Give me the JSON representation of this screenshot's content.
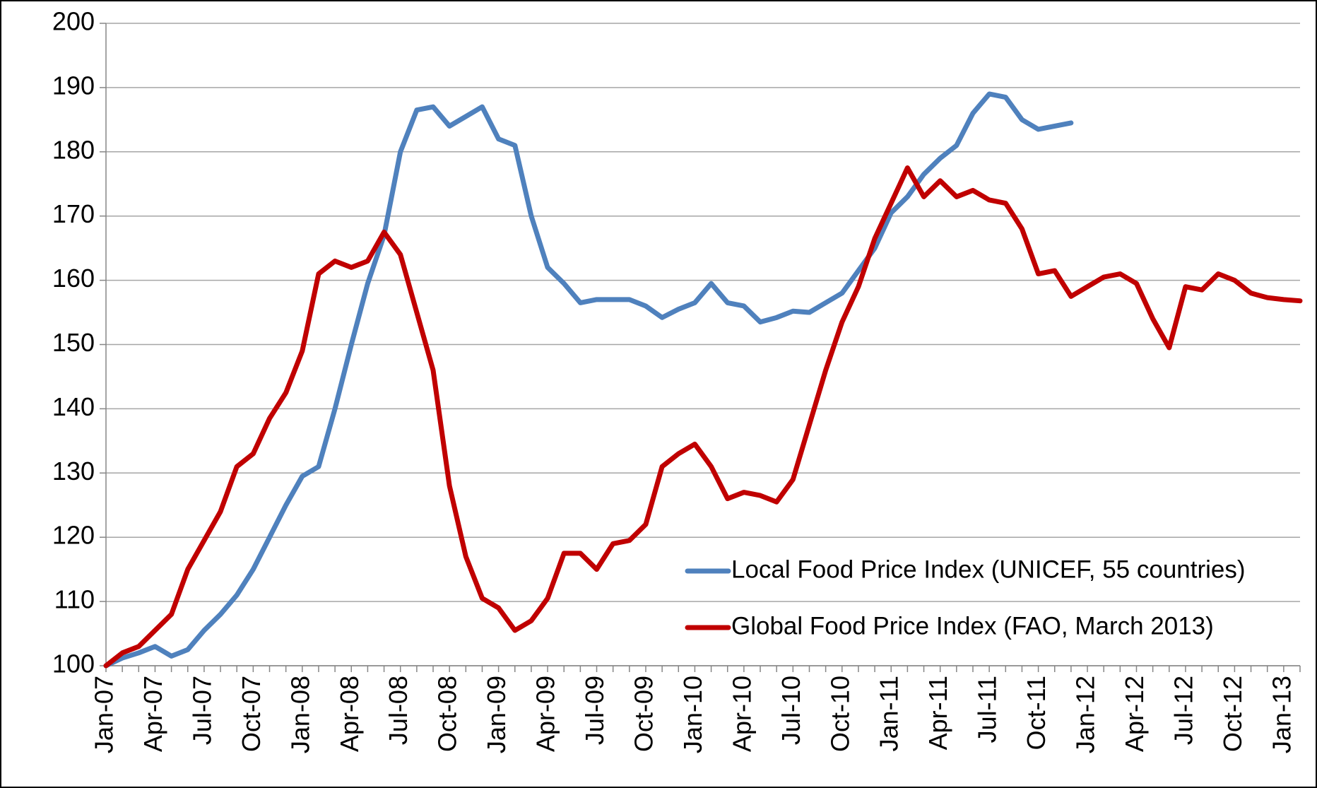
{
  "chart_data": {
    "type": "line",
    "categories": [
      "Jan-07",
      null,
      null,
      "Apr-07",
      null,
      null,
      "Jul-07",
      null,
      null,
      "Oct-07",
      null,
      null,
      "Jan-08",
      null,
      null,
      "Apr-08",
      null,
      null,
      "Jul-08",
      null,
      null,
      "Oct-08",
      null,
      null,
      "Jan-09",
      null,
      null,
      "Apr-09",
      null,
      null,
      "Jul-09",
      null,
      null,
      "Oct-09",
      null,
      null,
      "Jan-10",
      null,
      null,
      "Apr-10",
      null,
      null,
      "Jul-10",
      null,
      null,
      "Oct-10",
      null,
      null,
      "Jan-11",
      null,
      null,
      "Apr-11",
      null,
      null,
      "Jul-11",
      null,
      null,
      "Oct-11",
      null,
      null,
      "Jan-12",
      null,
      null,
      "Apr-12",
      null,
      null,
      "Jul-12",
      null,
      null,
      "Oct-12",
      null,
      null,
      "Jan-13",
      null
    ],
    "series": [
      {
        "name": "Local Food Price Index (UNICEF, 55 countries)",
        "color": "#4f81bd",
        "values": [
          100,
          101.2,
          102,
          103,
          101.5,
          102.5,
          105.5,
          108,
          111,
          115,
          120,
          125,
          129.5,
          131,
          140,
          150,
          159.5,
          167,
          180,
          186.5,
          187,
          184,
          185.5,
          187,
          182,
          181,
          170,
          162,
          159.5,
          156.5,
          157,
          157,
          157,
          156,
          154.2,
          155.5,
          156.5,
          159.5,
          156.5,
          156,
          153.5,
          154.2,
          155.2,
          155,
          156.5,
          158,
          161.5,
          165,
          170.5,
          173,
          176.5,
          179,
          181,
          186,
          189,
          188.5,
          185,
          183.5,
          184,
          184.5,
          null,
          null,
          null,
          null,
          null,
          null,
          null,
          null,
          null,
          null,
          null,
          null,
          null,
          null
        ]
      },
      {
        "name": "Global Food Price Index (FAO, March 2013)",
        "color": "#c00000",
        "values": [
          100,
          102,
          103,
          105.5,
          108,
          115,
          119.5,
          124,
          131,
          133,
          138.5,
          142.5,
          149,
          161,
          163,
          162,
          163,
          167.5,
          164,
          155,
          146,
          128,
          117,
          110.5,
          109,
          105.5,
          107,
          110.5,
          117.5,
          117.5,
          115,
          119,
          119.5,
          122,
          131,
          133,
          134.5,
          131,
          126,
          127,
          126.5,
          125.5,
          129,
          137.5,
          146,
          153.5,
          159,
          166.5,
          172,
          177.5,
          173,
          175.5,
          173,
          174,
          172.5,
          172,
          168,
          161,
          161.5,
          157.5,
          159,
          160.5,
          161,
          159.5,
          154,
          149.5,
          159,
          158.5,
          161,
          160,
          158,
          157.3,
          157,
          156.8
        ]
      }
    ],
    "ylim": [
      100,
      200
    ],
    "yticks": [
      100,
      110,
      120,
      130,
      140,
      150,
      160,
      170,
      180,
      190,
      200
    ],
    "grid": true,
    "legend": "lower right"
  }
}
